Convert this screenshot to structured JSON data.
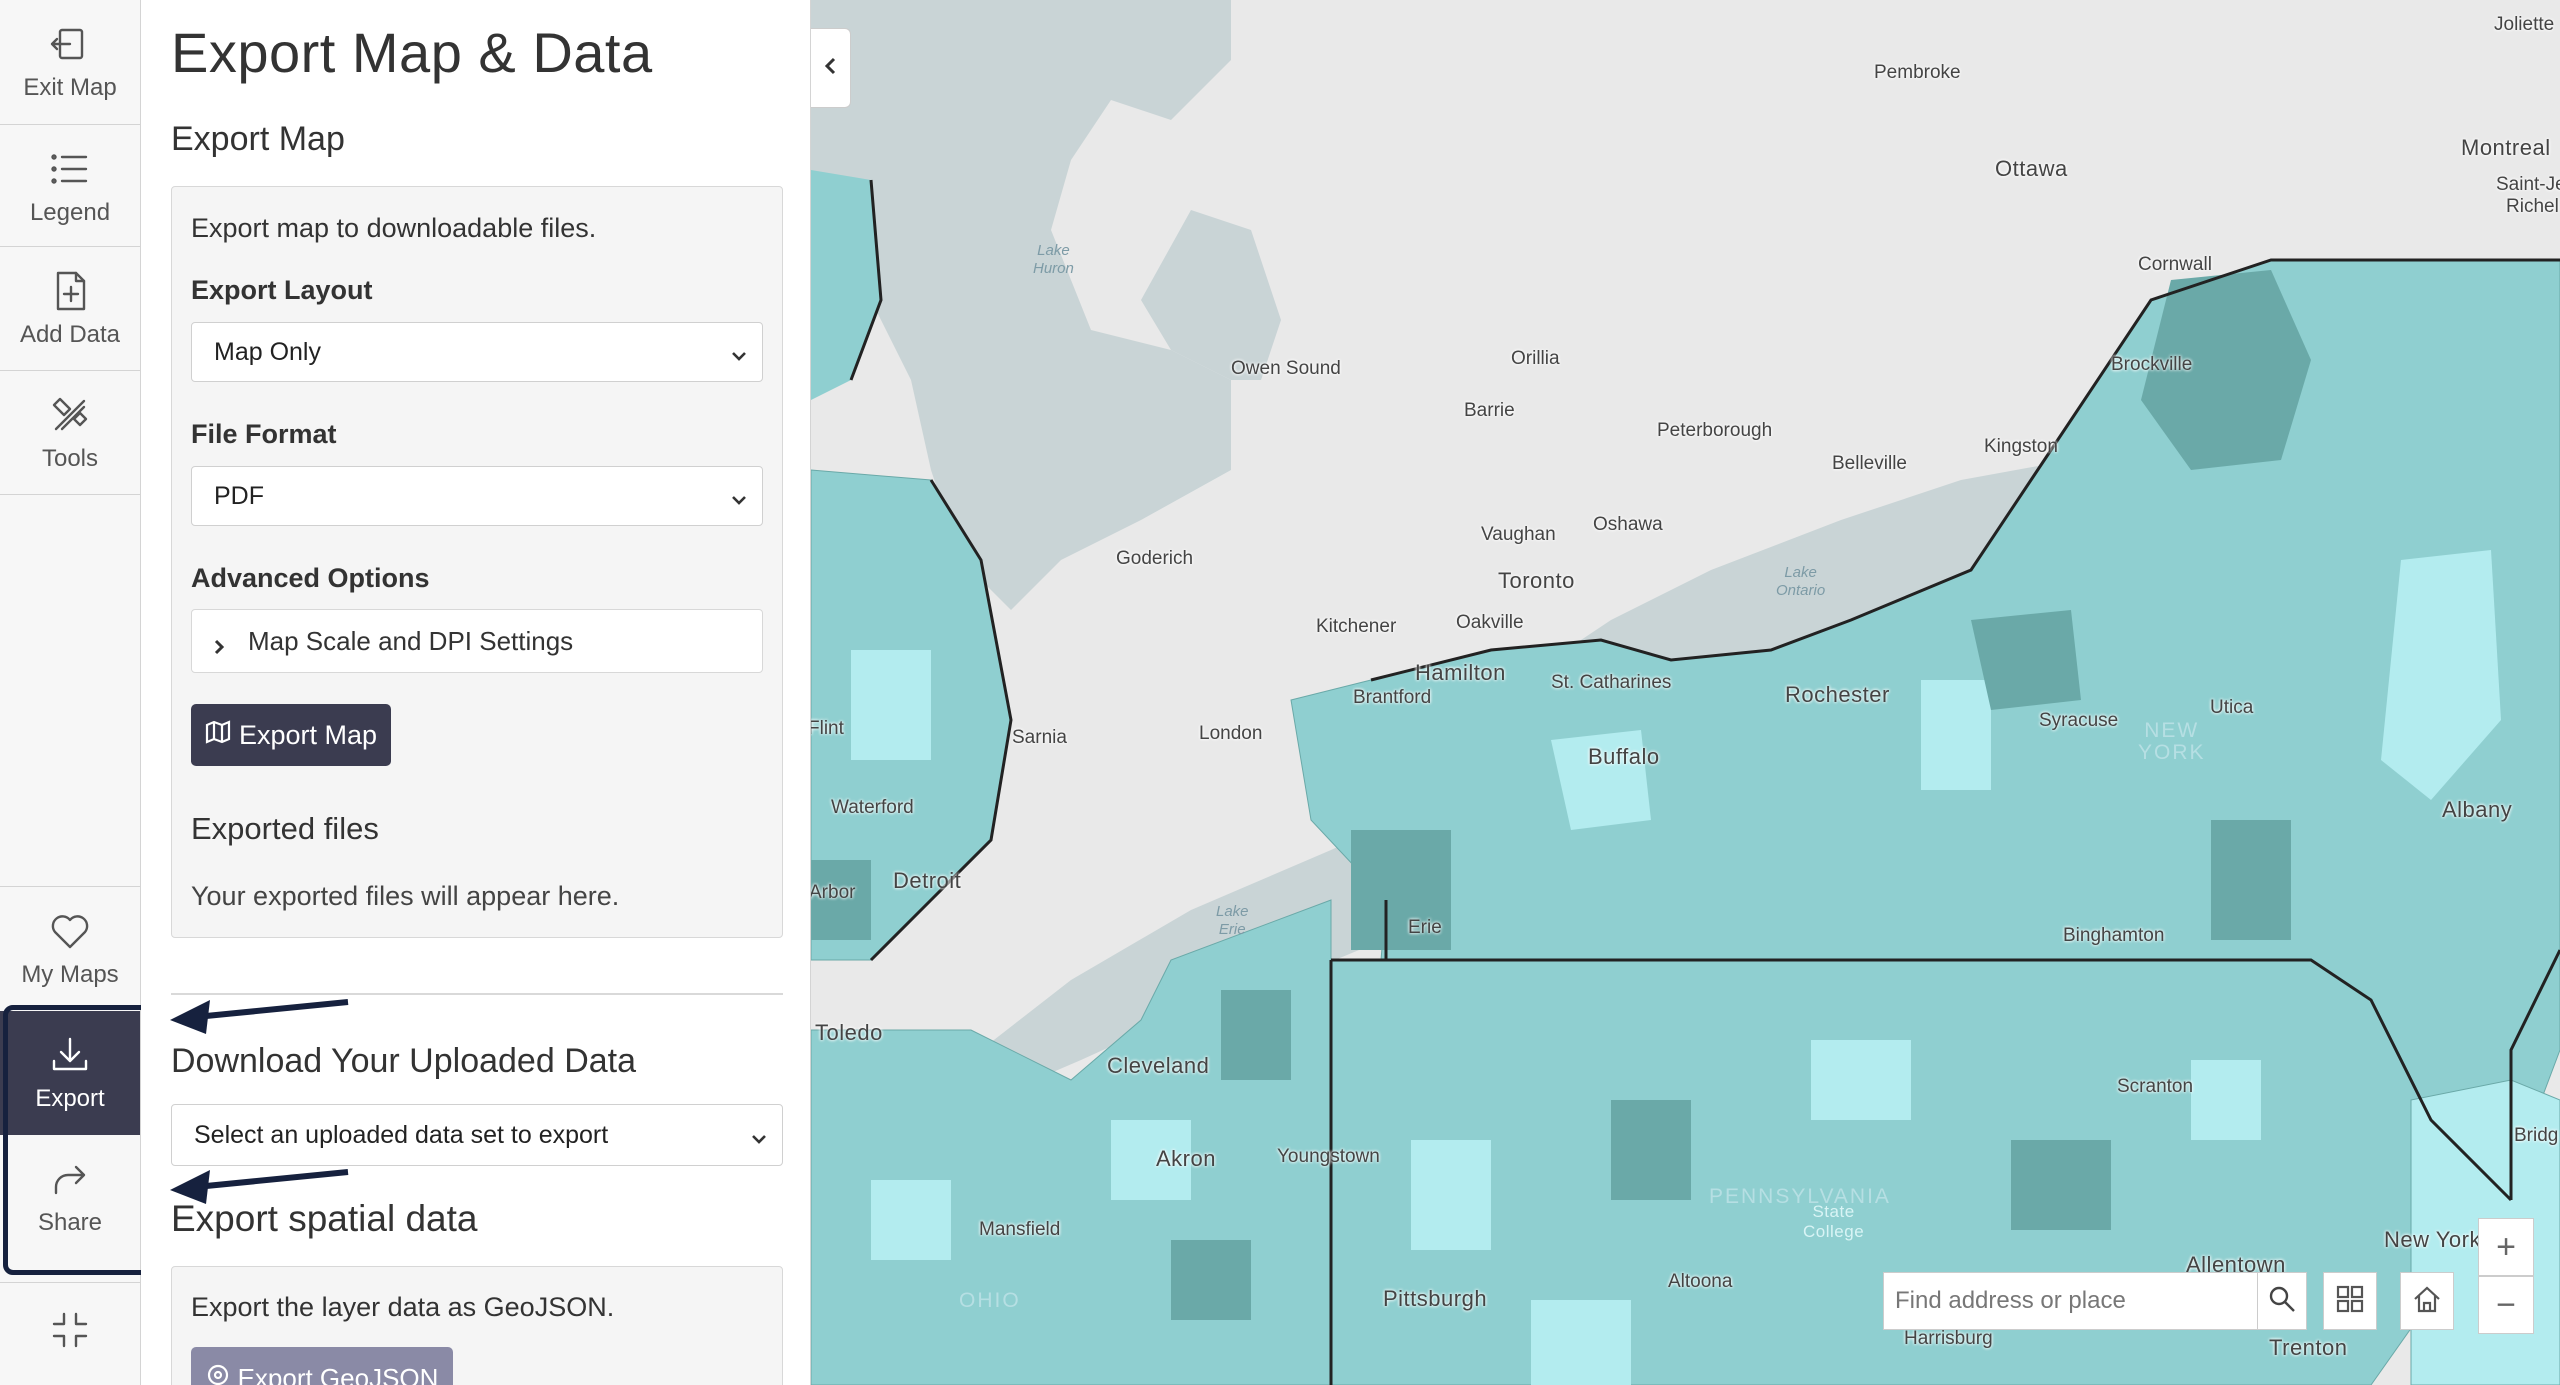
{
  "rail": {
    "top_items": [
      {
        "label": "Exit Map",
        "icon": "exit-icon"
      },
      {
        "label": "Legend",
        "icon": "list-icon"
      },
      {
        "label": "Add Data",
        "icon": "add-file-icon"
      },
      {
        "label": "Tools",
        "icon": "tools-icon"
      }
    ],
    "bottom_items": [
      {
        "label": "My Maps",
        "icon": "heart-icon"
      },
      {
        "label": "Export",
        "icon": "download-icon"
      },
      {
        "label": "Share",
        "icon": "share-icon"
      }
    ],
    "collapse_icon": "collapse-icon"
  },
  "panel": {
    "title": "Export Map & Data",
    "export_map_heading": "Export Map",
    "export_map_description": "Export map to downloadable files.",
    "export_layout_label": "Export Layout",
    "export_layout_value": "Map Only",
    "file_format_label": "File Format",
    "file_format_value": "PDF",
    "advanced_options_label": "Advanced Options",
    "advanced_options_item": "Map Scale and DPI Settings",
    "export_map_button": "Export Map",
    "exported_files_heading": "Exported files",
    "exported_files_note": "Your exported files will appear here.",
    "download_heading": "Download Your Uploaded Data",
    "download_select_value": "Select an uploaded data set to export",
    "spatial_heading": "Export spatial data",
    "spatial_description": "Export the layer data as GeoJSON.",
    "geojson_button": "Export GeoJSON"
  },
  "map": {
    "search_placeholder": "Find address or place",
    "zoom_in": "+",
    "zoom_out": "−",
    "colors": {
      "land": "#e9e9e9",
      "water": "#c9d4d6",
      "choropleth_light": "#b3ecef",
      "choropleth_mid": "#8fcfd0",
      "choropleth_dark": "#6aa9a8"
    },
    "places": [
      {
        "name": "Pembroke",
        "size": "md"
      },
      {
        "name": "Ottawa",
        "size": "big"
      },
      {
        "name": "Montreal",
        "size": "big"
      },
      {
        "name": "Joliette",
        "size": "md"
      },
      {
        "name": "Saint-Je",
        "size": "md"
      },
      {
        "name": "Richel",
        "size": "md"
      },
      {
        "name": "Cornwall",
        "size": "md"
      },
      {
        "name": "Brockville",
        "size": "md"
      },
      {
        "name": "Kingston",
        "size": "md"
      },
      {
        "name": "Belleville",
        "size": "md"
      },
      {
        "name": "Peterborough",
        "size": "md"
      },
      {
        "name": "Orillia",
        "size": "md"
      },
      {
        "name": "Barrie",
        "size": "md"
      },
      {
        "name": "Owen Sound",
        "size": "md"
      },
      {
        "name": "Oshawa",
        "size": "md"
      },
      {
        "name": "Vaughan",
        "size": "md"
      },
      {
        "name": "Toronto",
        "size": "big"
      },
      {
        "name": "Goderich",
        "size": "md"
      },
      {
        "name": "Kitchener",
        "size": "md"
      },
      {
        "name": "Oakville",
        "size": "md"
      },
      {
        "name": "Hamilton",
        "size": "big"
      },
      {
        "name": "Brantford",
        "size": "md"
      },
      {
        "name": "St. Catharines",
        "size": "md"
      },
      {
        "name": "Rochester",
        "size": "big"
      },
      {
        "name": "Syracuse",
        "size": "md"
      },
      {
        "name": "Utica",
        "size": "md"
      },
      {
        "name": "Albany",
        "size": "big"
      },
      {
        "name": "Buffalo",
        "size": "big"
      },
      {
        "name": "London",
        "size": "md"
      },
      {
        "name": "Sarnia",
        "size": "md"
      },
      {
        "name": "Flint",
        "size": "md"
      },
      {
        "name": "Waterford",
        "size": "md"
      },
      {
        "name": "Detroit",
        "size": "big"
      },
      {
        "name": "Arbor",
        "size": "md"
      },
      {
        "name": "Erie",
        "size": "md"
      },
      {
        "name": "Binghamton",
        "size": "md"
      },
      {
        "name": "Toledo",
        "size": "big"
      },
      {
        "name": "Cleveland",
        "size": "big"
      },
      {
        "name": "Akron",
        "size": "big"
      },
      {
        "name": "Youngstown",
        "size": "md"
      },
      {
        "name": "Mansfield",
        "size": "md"
      },
      {
        "name": "Scranton",
        "size": "md"
      },
      {
        "name": "Bridg",
        "size": "md"
      },
      {
        "name": "Pittsburgh",
        "size": "big"
      },
      {
        "name": "Altoona",
        "size": "md"
      },
      {
        "name": "Allentown",
        "size": "big"
      },
      {
        "name": "New York",
        "size": "big"
      },
      {
        "name": "Harrisburg",
        "size": "md"
      },
      {
        "name": "Trenton",
        "size": "big"
      }
    ],
    "water_labels": [
      {
        "line1": "Lake",
        "line2": "Huron"
      },
      {
        "line1": "Lake",
        "line2": "Ontario"
      },
      {
        "line1": "Lake",
        "line2": "Erie"
      }
    ],
    "state_labels": [
      {
        "line1": "NEW",
        "line2": "YORK"
      },
      {
        "line1": "PENNSYLVANIA",
        "line2": ""
      },
      {
        "line1": "OHIO",
        "line2": ""
      }
    ],
    "state_college": {
      "line1": "State",
      "line2": "College"
    }
  }
}
